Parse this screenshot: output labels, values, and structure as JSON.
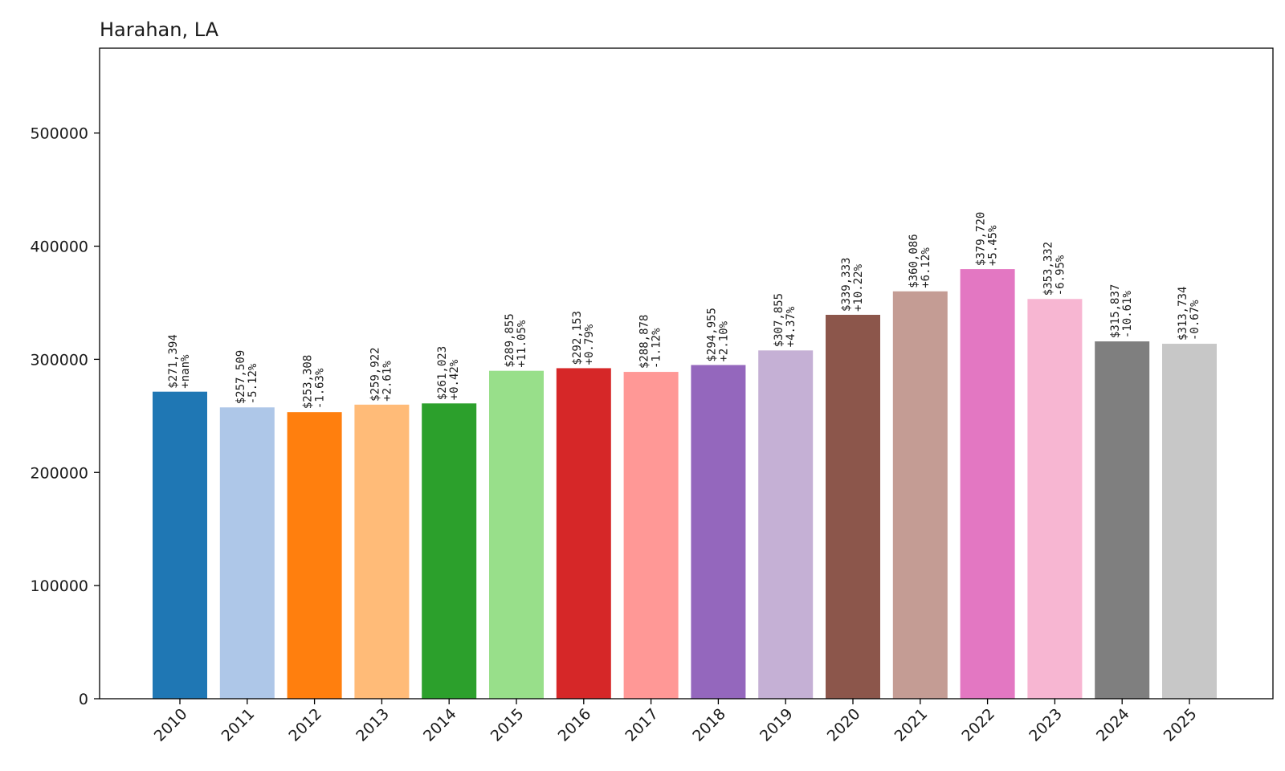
{
  "chart_data": {
    "type": "bar",
    "title": "Harahan, LA",
    "xlabel": "",
    "ylabel": "",
    "ylim": [
      0,
      575000
    ],
    "yticks": [
      0,
      100000,
      200000,
      300000,
      400000,
      500000
    ],
    "ytick_labels": [
      "0",
      "100000",
      "200000",
      "300000",
      "400000",
      "500000"
    ],
    "grid": false,
    "legend": "none",
    "categories": [
      "2010",
      "2011",
      "2012",
      "2013",
      "2014",
      "2015",
      "2016",
      "2017",
      "2018",
      "2019",
      "2020",
      "2021",
      "2022",
      "2023",
      "2024",
      "2025"
    ],
    "values": [
      271394,
      257509,
      253308,
      259922,
      261023,
      289855,
      292153,
      288878,
      294955,
      307855,
      339333,
      360086,
      379720,
      353332,
      315837,
      313734
    ],
    "value_labels": [
      "$271,394",
      "$257,509",
      "$253,308",
      "$259,922",
      "$261,023",
      "$289,855",
      "$292,153",
      "$288,878",
      "$294,955",
      "$307,855",
      "$339,333",
      "$360,086",
      "$379,720",
      "$353,332",
      "$315,837",
      "$313,734"
    ],
    "change_labels": [
      "+nan%",
      "-5.12%",
      "-1.63%",
      "+2.61%",
      "+0.42%",
      "+11.05%",
      "+0.79%",
      "-1.12%",
      "+2.10%",
      "+4.37%",
      "+10.22%",
      "+6.12%",
      "+5.45%",
      "-6.95%",
      "-10.61%",
      "-0.67%"
    ],
    "colors": [
      "#1f77b4",
      "#aec7e8",
      "#ff7f0e",
      "#ffbb78",
      "#2ca02c",
      "#98df8a",
      "#d62728",
      "#ff9896",
      "#9467bd",
      "#c5b0d5",
      "#8c564b",
      "#c49c94",
      "#e377c2",
      "#f7b6d2",
      "#7f7f7f",
      "#c7c7c7"
    ]
  }
}
